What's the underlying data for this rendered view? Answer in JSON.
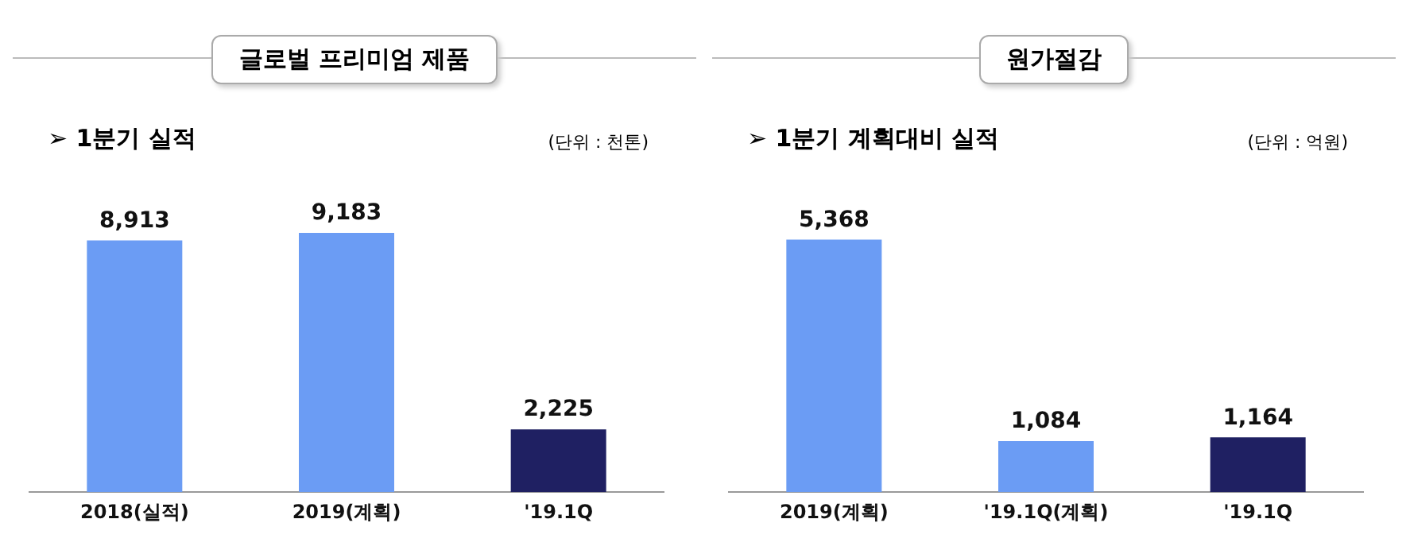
{
  "chart_data": [
    {
      "type": "bar",
      "title": "글로벌 프리미엄 제품",
      "subtitle": "➢ 1분기 실적",
      "annotations": [
        "(단위 : 천톤)"
      ],
      "categories": [
        "2018(실적)",
        "2019(계획)",
        "'19.1Q"
      ],
      "values": [
        8913,
        9183,
        2225
      ],
      "value_labels": [
        "8,913",
        "9,183",
        "2,225"
      ],
      "colors": [
        "#6b9cf4",
        "#6b9cf4",
        "#1f2062"
      ],
      "grid": false,
      "legend": false
    },
    {
      "type": "bar",
      "title": "원가절감",
      "subtitle": "➢ 1분기 계획대비 실적",
      "annotations": [
        "(단위 : 억원)"
      ],
      "categories": [
        "2019(계획)",
        "'19.1Q(계획)",
        "'19.1Q"
      ],
      "values": [
        5368,
        1084,
        1164
      ],
      "value_labels": [
        "5,368",
        "1,084",
        "1,164"
      ],
      "colors": [
        "#6b9cf4",
        "#6b9cf4",
        "#1f2062"
      ],
      "grid": false,
      "legend": false
    }
  ]
}
